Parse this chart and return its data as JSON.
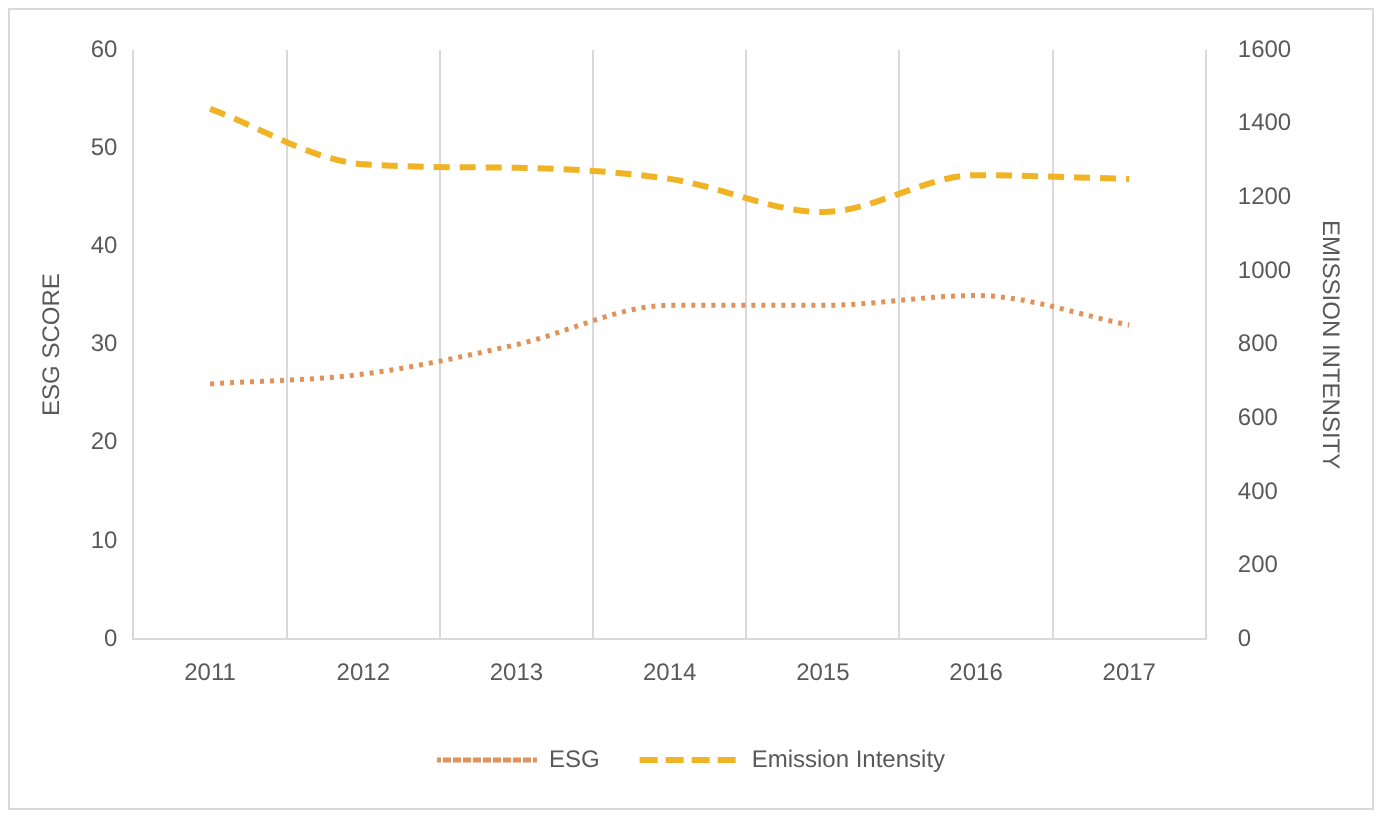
{
  "chart_data": {
    "type": "line",
    "xlabel": null,
    "ylabel": "ESG SCORE",
    "y2label": "EMISSION INTENSITY",
    "categories": [
      "2011",
      "2012",
      "2013",
      "2014",
      "2015",
      "2016",
      "2017"
    ],
    "series": [
      {
        "name": "ESG",
        "color": "#e0925a",
        "line_style": "dotted",
        "values": [
          26,
          27,
          30,
          34,
          34,
          35,
          32
        ]
      },
      {
        "name": "Emission Intensity",
        "color": "#f0b323",
        "line_style": "dashed",
        "axis": "y2",
        "values": [
          1440,
          1290,
          1280,
          1250,
          1160,
          1260,
          1250
        ]
      }
    ],
    "ylim": [
      0,
      60
    ],
    "yticks": [
      0,
      10,
      20,
      30,
      40,
      50,
      60
    ],
    "y2lim": [
      0,
      1600
    ],
    "y2ticks": [
      0,
      200,
      400,
      600,
      800,
      1000,
      1200,
      1400,
      1600
    ],
    "grid": "x",
    "legend": "bottom",
    "marker": "none"
  }
}
